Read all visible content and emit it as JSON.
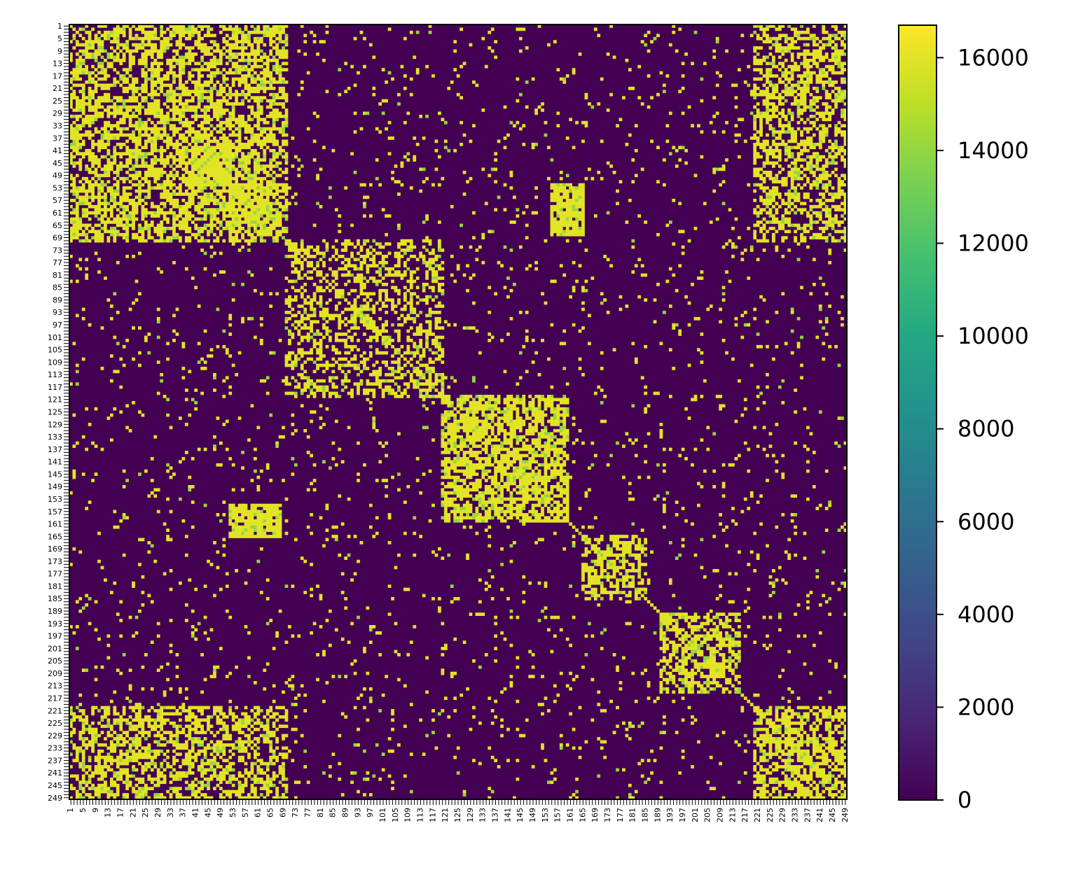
{
  "chart_data": {
    "type": "heatmap",
    "title": "",
    "xlabel": "",
    "ylabel": "",
    "n_rows": 249,
    "n_cols": 249,
    "row_labels_first": "1",
    "row_labels_last": "249",
    "col_labels_first": "1",
    "col_labels_last": "249",
    "colormap": "viridis",
    "value_range": [
      0,
      16700
    ],
    "colorbar": {
      "ticks": [
        0,
        2000,
        4000,
        6000,
        8000,
        10000,
        12000,
        14000,
        16000
      ],
      "tick_labels": [
        "0",
        "2000",
        "4000",
        "6000",
        "8000",
        "10000",
        "12000",
        "14000",
        "16000"
      ],
      "placement": "right"
    },
    "background_value": 0,
    "high_value": 16000,
    "block_structure": [
      {
        "rows": [
          1,
          70
        ],
        "cols": [
          1,
          70
        ],
        "density": 0.6
      },
      {
        "rows": [
          1,
          70
        ],
        "cols": [
          220,
          249
        ],
        "density": 0.55
      },
      {
        "rows": [
          220,
          249
        ],
        "cols": [
          1,
          70
        ],
        "density": 0.55
      },
      {
        "rows": [
          220,
          249
        ],
        "cols": [
          220,
          249
        ],
        "density": 0.6
      },
      {
        "rows": [
          70,
          120
        ],
        "cols": [
          70,
          120
        ],
        "density": 0.45
      },
      {
        "rows": [
          120,
          160
        ],
        "cols": [
          120,
          160
        ],
        "density": 0.7
      },
      {
        "rows": [
          190,
          215
        ],
        "cols": [
          190,
          215
        ],
        "density": 0.6
      },
      {
        "rows": [
          40,
          52
        ],
        "cols": [
          40,
          52
        ],
        "density": 0.9
      },
      {
        "rows": [
          52,
          68
        ],
        "cols": [
          52,
          68
        ],
        "density": 0.8
      },
      {
        "rows": [
          155,
          165
        ],
        "cols": [
          52,
          68
        ],
        "density": 0.8
      },
      {
        "rows": [
          165,
          185
        ],
        "cols": [
          165,
          185
        ],
        "density": 0.55
      }
    ],
    "grid": false
  }
}
